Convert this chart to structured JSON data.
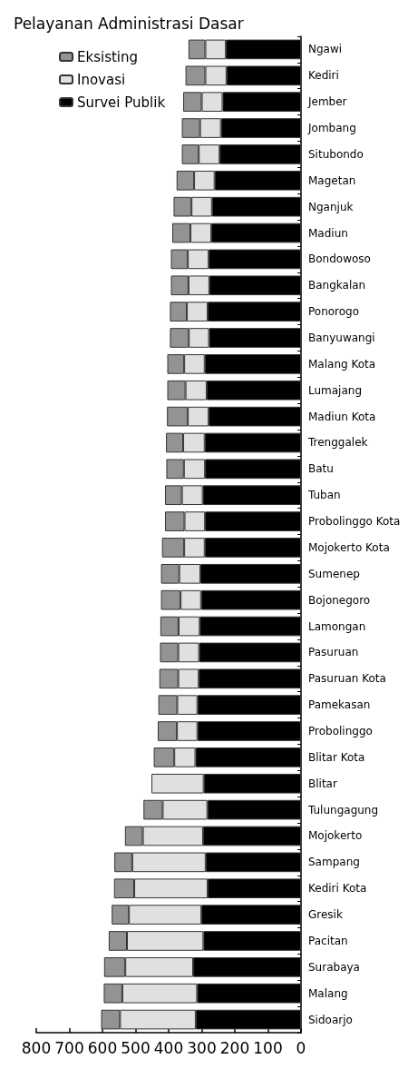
{
  "chart_data": {
    "type": "bar",
    "orientation": "horizontal",
    "stacked": true,
    "title": "Pelayanan Administrasi Dasar",
    "categories": [
      "Ngawi",
      "Kediri",
      "Jember",
      "Jombang",
      "Situbondo",
      "Magetan",
      "Nganjuk",
      "Madiun",
      "Bondowoso",
      "Bangkalan",
      "Ponorogo",
      "Banyuwangi",
      "Malang Kota",
      "Lumajang",
      "Madiun Kota",
      "Trenggalek",
      "Batu",
      "Tuban",
      "Probolinggo Kota",
      "Mojokerto Kota",
      "Sumenep",
      "Bojonegoro",
      "Lamongan",
      "Pasuruan",
      "Pasuruan Kota",
      "Pamekasan",
      "Probolinggo",
      "Blitar Kota",
      "Blitar",
      "Tulungagung",
      "Mojokerto",
      "Sampang",
      "Kediri Kota",
      "Gresik",
      "Pacitan",
      "Surabaya",
      "Malang",
      "Sidoarjo"
    ],
    "series": [
      {
        "name": "Survei Publik",
        "color": "#000000",
        "values": [
          227,
          225,
          237,
          242,
          246,
          261,
          269,
          271,
          279,
          277,
          282,
          278,
          291,
          285,
          279,
          291,
          290,
          297,
          290,
          291,
          304,
          302,
          306,
          308,
          309,
          313,
          313,
          319,
          294,
          283,
          296,
          288,
          282,
          301,
          295,
          326,
          314,
          318
        ]
      },
      {
        "name": "Inovasi",
        "color": "#e0e0e2",
        "values": [
          62,
          64,
          63,
          63,
          63,
          62,
          62,
          63,
          63,
          63,
          63,
          61,
          62,
          64,
          63,
          65,
          64,
          63,
          62,
          62,
          64,
          62,
          64,
          63,
          62,
          61,
          62,
          64,
          158,
          135,
          182,
          222,
          222,
          219,
          231,
          205,
          226,
          229
        ]
      },
      {
        "name": "Eksisting",
        "color": "#939396",
        "values": [
          51,
          60,
          56,
          55,
          51,
          53,
          54,
          55,
          51,
          53,
          51,
          57,
          51,
          55,
          63,
          52,
          53,
          51,
          59,
          67,
          55,
          59,
          55,
          55,
          57,
          57,
          58,
          62,
          null,
          58,
          54,
          54,
          61,
          52,
          55,
          64,
          56,
          57
        ]
      }
    ],
    "xlim": [
      800,
      0
    ],
    "xticks": [
      0,
      100,
      200,
      300,
      400,
      500,
      600,
      700,
      800
    ],
    "legend": "top left",
    "grid": false
  }
}
